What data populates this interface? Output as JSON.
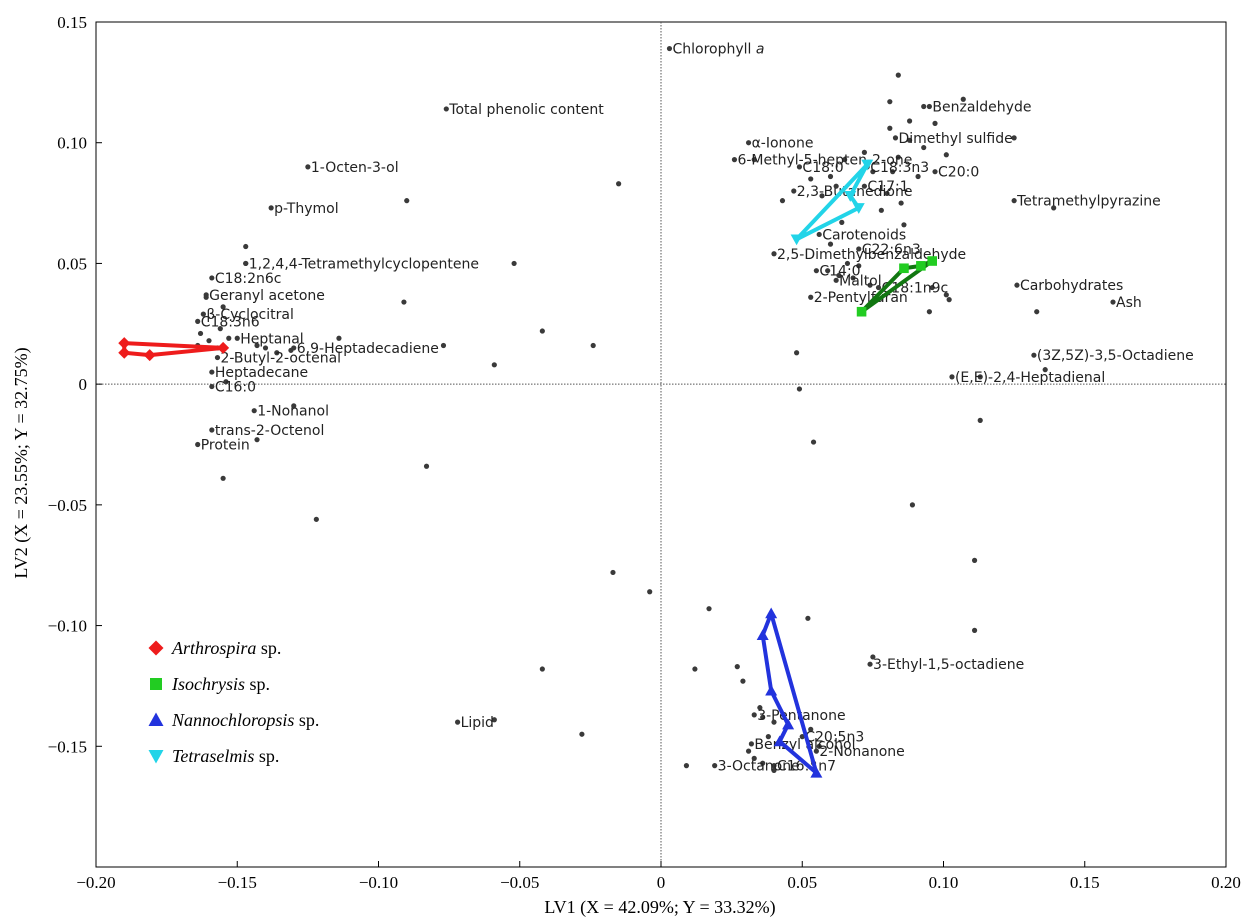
{
  "chart_data": {
    "type": "scatter",
    "xlabel": "LV1 (X = 42.09%; Y = 33.32%)",
    "ylabel": "LV2 (X = 23.55%; Y = 32.75%)",
    "xlim": [
      -0.2,
      0.2
    ],
    "ylim": [
      -0.2,
      0.15
    ],
    "x_ticks": [
      "−0.20",
      "−0.15",
      "−0.10",
      "−0.05",
      "0",
      "0.05",
      "0.10",
      "0.15",
      "0.20"
    ],
    "y_ticks": [
      "0.15",
      "0.10",
      "0.05",
      "0",
      "−0.05",
      "−0.10",
      "−0.15"
    ],
    "reference_lines": {
      "x": 0,
      "y": 0,
      "style": "dotted"
    },
    "grid": false,
    "legend_position": "bottom-left",
    "legend": [
      {
        "italic": "Arthrospira",
        "suffix": " sp.",
        "color": "#ee1c1c",
        "marker": "diamond"
      },
      {
        "italic": "Isochrysis",
        "suffix": " sp.",
        "color": "#22cc22",
        "marker": "square"
      },
      {
        "italic": "Nannochloropsis",
        "suffix": " sp.",
        "color": "#2233dd",
        "marker": "triangle-up"
      },
      {
        "italic": "Tetraselmis",
        "suffix": " sp.",
        "color": "#22d4e8",
        "marker": "triangle-down"
      }
    ],
    "groups": [
      {
        "name": "Arthrospira sp.",
        "color": "#ee1c1c",
        "line_color": "#ee1c1c",
        "marker": "diamond",
        "points": [
          [
            -0.19,
            0.017
          ],
          [
            -0.19,
            0.013
          ],
          [
            -0.181,
            0.012
          ],
          [
            -0.155,
            0.015
          ]
        ]
      },
      {
        "name": "Isochrysis sp.",
        "color": "#22cc22",
        "line_color": "#117711",
        "marker": "square",
        "points": [
          [
            0.071,
            0.03
          ],
          [
            0.086,
            0.048
          ],
          [
            0.092,
            0.049
          ],
          [
            0.096,
            0.051
          ]
        ]
      },
      {
        "name": "Nannochloropsis sp.",
        "color": "#2233dd",
        "line_color": "#2233dd",
        "marker": "triangle-up",
        "points": [
          [
            0.039,
            -0.095
          ],
          [
            0.036,
            -0.104
          ],
          [
            0.039,
            -0.127
          ],
          [
            0.045,
            -0.141
          ],
          [
            0.042,
            -0.148
          ],
          [
            0.055,
            -0.161
          ]
        ]
      },
      {
        "name": "Tetraselmis sp.",
        "color": "#22d4e8",
        "line_color": "#22d4e8",
        "marker": "triangle-down",
        "points": [
          [
            0.048,
            0.06
          ],
          [
            0.073,
            0.091
          ],
          [
            0.067,
            0.078
          ],
          [
            0.07,
            0.073
          ]
        ]
      }
    ],
    "variables": [
      {
        "label": "Chlorophyll a",
        "x": 0.003,
        "y": 0.139
      },
      {
        "label": "Total phenolic content",
        "x": -0.076,
        "y": 0.114
      },
      {
        "label": "α-Ionone",
        "x": 0.031,
        "y": 0.1
      },
      {
        "label": "Benzaldehyde",
        "x": 0.095,
        "y": 0.115
      },
      {
        "label": "Dimethyl sulfide",
        "x": 0.083,
        "y": 0.102
      },
      {
        "label": "C18:3n3",
        "x": 0.073,
        "y": 0.09
      },
      {
        "label": "C18:0",
        "x": 0.049,
        "y": 0.09
      },
      {
        "label": "6-Methyl-5-hepten-2-one",
        "x": 0.026,
        "y": 0.093
      },
      {
        "label": "C20:0",
        "x": 0.097,
        "y": 0.088
      },
      {
        "label": "C17:1",
        "x": 0.072,
        "y": 0.082
      },
      {
        "label": "2,3-Butanedione",
        "x": 0.047,
        "y": 0.08
      },
      {
        "label": "Tetramethylpyrazine",
        "x": 0.125,
        "y": 0.076
      },
      {
        "label": "1-Octen-3-ol",
        "x": -0.125,
        "y": 0.09
      },
      {
        "label": "p-Thymol",
        "x": -0.138,
        "y": 0.073
      },
      {
        "label": "Carotenoids",
        "x": 0.056,
        "y": 0.062
      },
      {
        "label": "2,5-Dimethylbenzaldehyde",
        "x": 0.04,
        "y": 0.054
      },
      {
        "label": "C22:6n3",
        "x": 0.07,
        "y": 0.056
      },
      {
        "label": "1,2,4,4-Tetramethylcyclopentene",
        "x": -0.147,
        "y": 0.05
      },
      {
        "label": "C14:0",
        "x": 0.055,
        "y": 0.047
      },
      {
        "label": "C18:2n6c",
        "x": -0.159,
        "y": 0.044
      },
      {
        "label": "Maltol",
        "x": 0.062,
        "y": 0.043
      },
      {
        "label": "C18:1n9c",
        "x": 0.077,
        "y": 0.04
      },
      {
        "label": "Carbohydrates",
        "x": 0.126,
        "y": 0.041
      },
      {
        "label": "Geranyl acetone",
        "x": -0.161,
        "y": 0.037
      },
      {
        "label": "2-Pentylfuran",
        "x": 0.053,
        "y": 0.036
      },
      {
        "label": "Ash",
        "x": 0.16,
        "y": 0.034
      },
      {
        "label": "β-Cyclocitral",
        "x": -0.162,
        "y": 0.029
      },
      {
        "label": "C18:3n6",
        "x": -0.164,
        "y": 0.026
      },
      {
        "label": "Heptanal",
        "x": -0.15,
        "y": 0.019
      },
      {
        "label": "6,9-Heptadecadiene",
        "x": -0.13,
        "y": 0.015
      },
      {
        "label": "2-Butyl-2-octenal",
        "x": -0.157,
        "y": 0.011
      },
      {
        "label": "Heptadecane",
        "x": -0.159,
        "y": 0.005
      },
      {
        "label": "(3Z,5Z)-3,5-Octadiene",
        "x": 0.132,
        "y": 0.012
      },
      {
        "label": "C16:0",
        "x": -0.159,
        "y": -0.001
      },
      {
        "label": "(E,E)-2,4-Heptadienal",
        "x": 0.103,
        "y": 0.003
      },
      {
        "label": "1-Nonanol",
        "x": -0.144,
        "y": -0.011
      },
      {
        "label": "trans-2-Octenol",
        "x": -0.159,
        "y": -0.019
      },
      {
        "label": "Protein",
        "x": -0.164,
        "y": -0.025
      },
      {
        "label": "3-Ethyl-1,5-octadiene",
        "x": 0.074,
        "y": -0.116
      },
      {
        "label": "3-Pentanone",
        "x": 0.033,
        "y": -0.137
      },
      {
        "label": "C20:5n3",
        "x": 0.05,
        "y": -0.146
      },
      {
        "label": "Lipid",
        "x": -0.072,
        "y": -0.14
      },
      {
        "label": "Benzyl alcohol",
        "x": 0.032,
        "y": -0.149
      },
      {
        "label": "2-Nonanone",
        "x": 0.055,
        "y": -0.152
      },
      {
        "label": "3-Octanone",
        "x": 0.019,
        "y": -0.158
      },
      {
        "label": "C16:1n7",
        "x": 0.04,
        "y": -0.158
      }
    ],
    "unlabeled_points": [
      [
        0.084,
        0.128
      ],
      [
        0.081,
        0.117
      ],
      [
        0.093,
        0.115
      ],
      [
        0.107,
        0.118
      ],
      [
        0.088,
        0.109
      ],
      [
        0.097,
        0.108
      ],
      [
        0.081,
        0.106
      ],
      [
        0.088,
        0.101
      ],
      [
        0.125,
        0.102
      ],
      [
        0.093,
        0.098
      ],
      [
        0.101,
        0.095
      ],
      [
        0.084,
        0.094
      ],
      [
        0.072,
        0.096
      ],
      [
        0.065,
        0.093
      ],
      [
        0.075,
        0.088
      ],
      [
        0.082,
        0.088
      ],
      [
        0.091,
        0.086
      ],
      [
        0.06,
        0.086
      ],
      [
        0.053,
        0.085
      ],
      [
        0.057,
        0.078
      ],
      [
        0.062,
        0.082
      ],
      [
        0.08,
        0.079
      ],
      [
        0.085,
        0.075
      ],
      [
        0.078,
        0.072
      ],
      [
        0.086,
        0.066
      ],
      [
        0.139,
        0.073
      ],
      [
        0.043,
        0.076
      ],
      [
        -0.015,
        0.083
      ],
      [
        0.033,
        0.093
      ],
      [
        0.064,
        0.067
      ],
      [
        0.06,
        0.058
      ],
      [
        0.066,
        0.05
      ],
      [
        0.07,
        0.049
      ],
      [
        0.063,
        0.045
      ],
      [
        0.059,
        0.047
      ],
      [
        0.074,
        0.041
      ],
      [
        0.068,
        0.044
      ],
      [
        0.101,
        0.037
      ],
      [
        0.096,
        0.04
      ],
      [
        0.102,
        0.035
      ],
      [
        0.095,
        0.03
      ],
      [
        0.133,
        0.03
      ],
      [
        0.136,
        0.006
      ],
      [
        0.113,
        0.003
      ],
      [
        -0.09,
        0.076
      ],
      [
        -0.147,
        0.057
      ],
      [
        -0.147,
        0.05
      ],
      [
        -0.161,
        0.036
      ],
      [
        -0.155,
        0.032
      ],
      [
        -0.163,
        0.021
      ],
      [
        -0.156,
        0.023
      ],
      [
        -0.16,
        0.018
      ],
      [
        -0.164,
        0.016
      ],
      [
        -0.143,
        0.016
      ],
      [
        -0.14,
        0.015
      ],
      [
        -0.136,
        0.013
      ],
      [
        -0.131,
        0.014
      ],
      [
        -0.114,
        0.019
      ],
      [
        -0.091,
        0.034
      ],
      [
        -0.077,
        0.016
      ],
      [
        -0.052,
        0.05
      ],
      [
        -0.042,
        0.022
      ],
      [
        -0.059,
        0.008
      ],
      [
        -0.024,
        0.016
      ],
      [
        -0.153,
        0.019
      ],
      [
        -0.157,
        0.015
      ],
      [
        -0.154,
        0.001
      ],
      [
        -0.13,
        -0.009
      ],
      [
        -0.143,
        -0.023
      ],
      [
        -0.155,
        -0.039
      ],
      [
        -0.083,
        -0.034
      ],
      [
        -0.122,
        -0.056
      ],
      [
        0.048,
        0.013
      ],
      [
        0.049,
        -0.002
      ],
      [
        0.054,
        -0.024
      ],
      [
        0.113,
        -0.015
      ],
      [
        0.089,
        -0.05
      ],
      [
        0.111,
        -0.073
      ],
      [
        0.111,
        -0.102
      ],
      [
        -0.017,
        -0.078
      ],
      [
        -0.004,
        -0.086
      ],
      [
        0.017,
        -0.093
      ],
      [
        0.052,
        -0.097
      ],
      [
        0.075,
        -0.113
      ],
      [
        0.027,
        -0.117
      ],
      [
        0.012,
        -0.118
      ],
      [
        -0.042,
        -0.118
      ],
      [
        0.029,
        -0.123
      ],
      [
        0.035,
        -0.134
      ],
      [
        0.036,
        -0.138
      ],
      [
        0.038,
        -0.146
      ],
      [
        0.04,
        -0.14
      ],
      [
        0.053,
        -0.143
      ],
      [
        0.056,
        -0.15
      ],
      [
        0.031,
        -0.152
      ],
      [
        0.033,
        -0.155
      ],
      [
        0.036,
        -0.157
      ],
      [
        0.04,
        -0.16
      ],
      [
        0.054,
        -0.157
      ],
      [
        -0.059,
        -0.139
      ],
      [
        -0.028,
        -0.145
      ],
      [
        0.009,
        -0.158
      ]
    ]
  }
}
